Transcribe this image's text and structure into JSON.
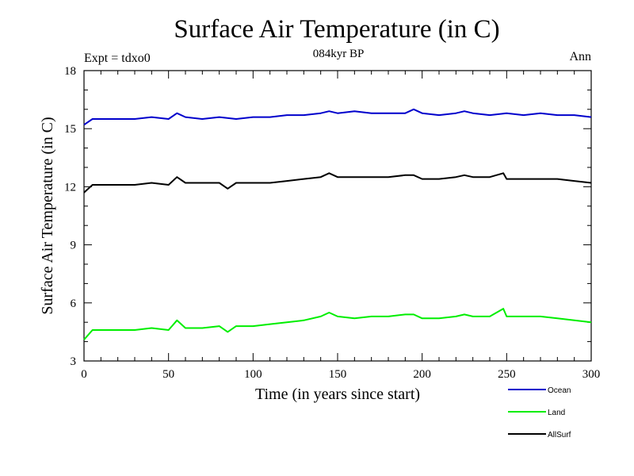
{
  "chart_data": {
    "type": "line",
    "title": "Surface Air Temperature (in C)",
    "subtitle": "084kyr BP",
    "top_left_label": "Expt = tdxo0",
    "top_right_label": "Ann",
    "xlabel": "Time (in years since start)",
    "ylabel": "Surface Air Temperature (in C)",
    "xlim": [
      0,
      300
    ],
    "ylim": [
      3,
      18
    ],
    "x_ticks": [
      0,
      50,
      100,
      150,
      200,
      250,
      300
    ],
    "y_ticks": [
      3,
      6,
      9,
      12,
      15,
      18
    ],
    "x_minor_step": 10,
    "y_minor_step": 1,
    "grid": false,
    "legend_position": "bottom-right, below plot",
    "series": [
      {
        "name": "Ocean",
        "color": "#0000cc",
        "x": [
          0,
          5,
          10,
          20,
          30,
          40,
          50,
          55,
          60,
          70,
          80,
          90,
          100,
          110,
          120,
          130,
          140,
          145,
          150,
          160,
          170,
          180,
          190,
          195,
          200,
          210,
          220,
          225,
          230,
          240,
          250,
          260,
          270,
          280,
          290,
          300
        ],
        "values": [
          15.2,
          15.5,
          15.5,
          15.5,
          15.5,
          15.6,
          15.5,
          15.8,
          15.6,
          15.5,
          15.6,
          15.5,
          15.6,
          15.6,
          15.7,
          15.7,
          15.8,
          15.9,
          15.8,
          15.9,
          15.8,
          15.8,
          15.8,
          16.0,
          15.8,
          15.7,
          15.8,
          15.9,
          15.8,
          15.7,
          15.8,
          15.7,
          15.8,
          15.7,
          15.7,
          15.6
        ]
      },
      {
        "name": "Land",
        "color": "#00ee00",
        "x": [
          0,
          5,
          10,
          20,
          30,
          40,
          50,
          55,
          60,
          70,
          80,
          85,
          90,
          100,
          110,
          120,
          130,
          140,
          145,
          150,
          160,
          170,
          180,
          190,
          195,
          200,
          210,
          220,
          225,
          230,
          240,
          248,
          250,
          260,
          270,
          280,
          290,
          300
        ],
        "values": [
          4.1,
          4.6,
          4.6,
          4.6,
          4.6,
          4.7,
          4.6,
          5.1,
          4.7,
          4.7,
          4.8,
          4.5,
          4.8,
          4.8,
          4.9,
          5.0,
          5.1,
          5.3,
          5.5,
          5.3,
          5.2,
          5.3,
          5.3,
          5.4,
          5.4,
          5.2,
          5.2,
          5.3,
          5.4,
          5.3,
          5.3,
          5.7,
          5.3,
          5.3,
          5.3,
          5.2,
          5.1,
          5.0
        ]
      },
      {
        "name": "AllSurf",
        "color": "#000000",
        "x": [
          0,
          5,
          10,
          20,
          30,
          40,
          50,
          55,
          60,
          70,
          80,
          85,
          90,
          100,
          110,
          120,
          130,
          140,
          145,
          150,
          160,
          170,
          180,
          190,
          195,
          200,
          210,
          220,
          225,
          230,
          240,
          248,
          250,
          260,
          270,
          280,
          290,
          300
        ],
        "values": [
          11.7,
          12.1,
          12.1,
          12.1,
          12.1,
          12.2,
          12.1,
          12.5,
          12.2,
          12.2,
          12.2,
          11.9,
          12.2,
          12.2,
          12.2,
          12.3,
          12.4,
          12.5,
          12.7,
          12.5,
          12.5,
          12.5,
          12.5,
          12.6,
          12.6,
          12.4,
          12.4,
          12.5,
          12.6,
          12.5,
          12.5,
          12.7,
          12.4,
          12.4,
          12.4,
          12.4,
          12.3,
          12.2
        ]
      }
    ]
  }
}
